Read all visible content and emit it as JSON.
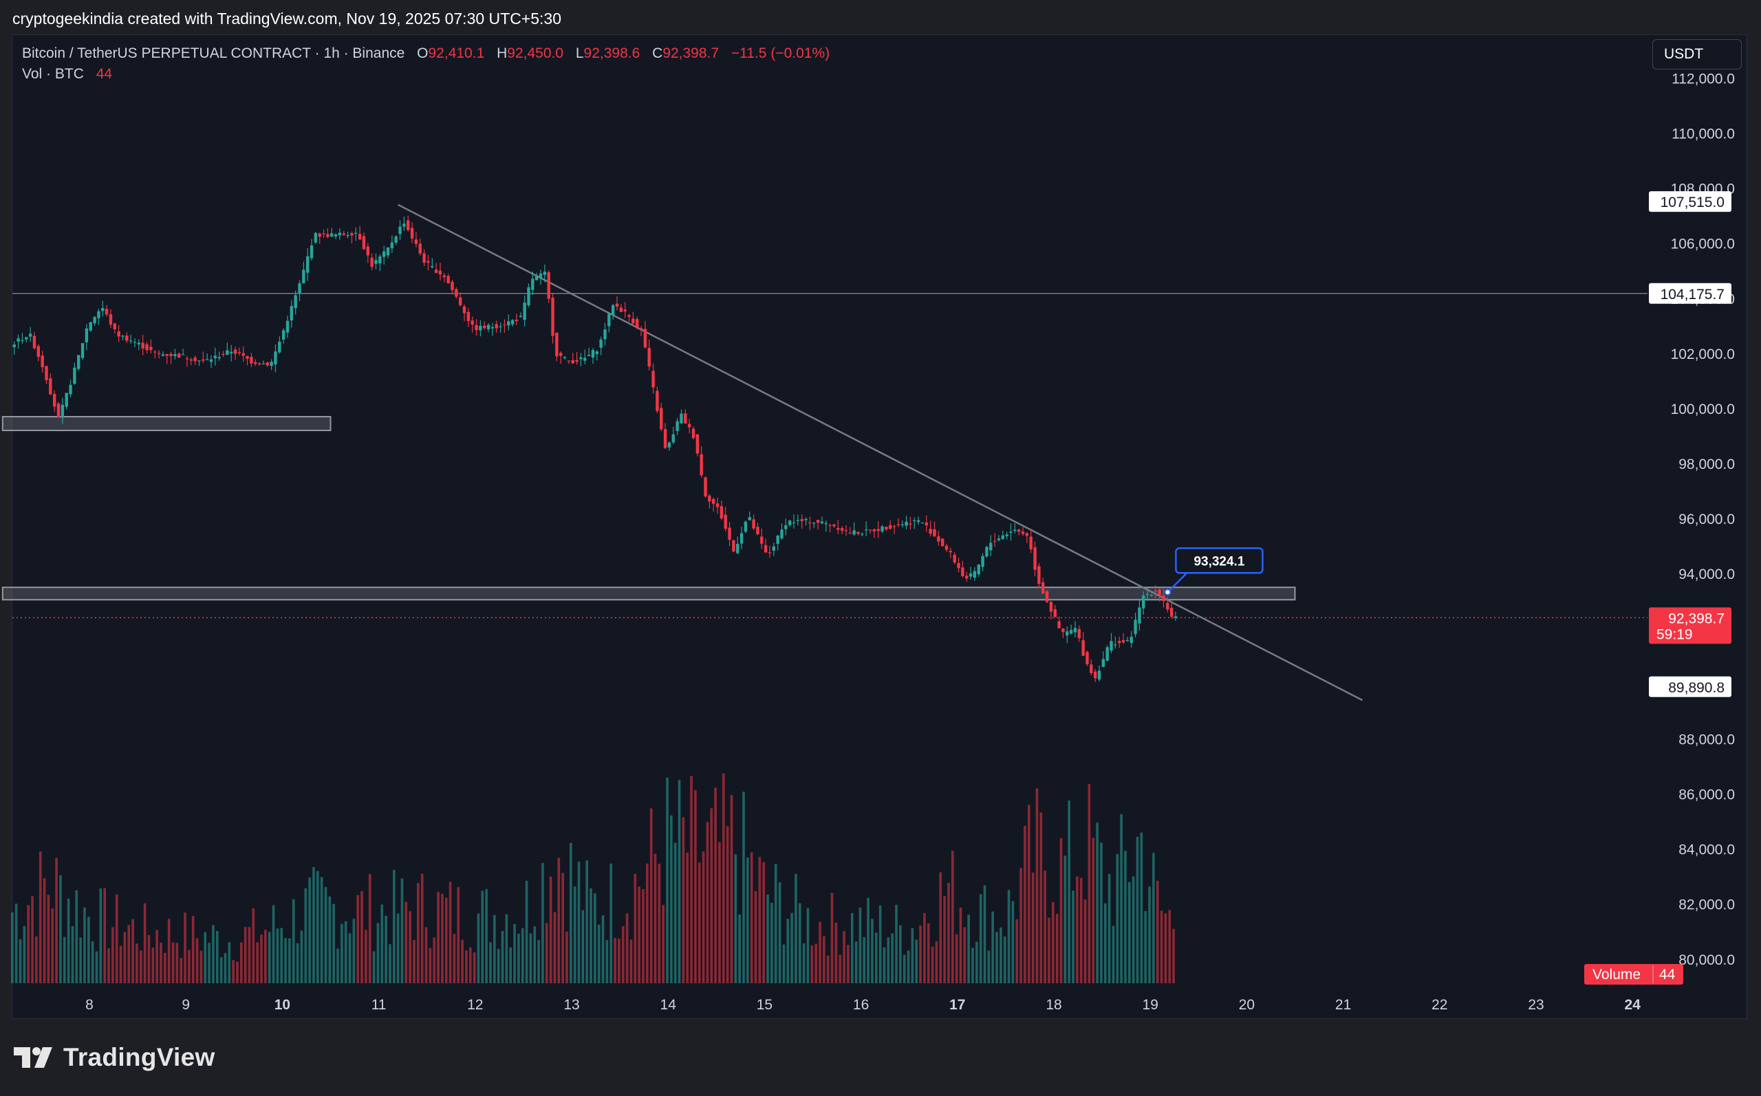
{
  "header": {
    "caption": "cryptogeekindia created with TradingView.com, Nov 19, 2025 07:30 UTC+5:30"
  },
  "legend": {
    "title": "Bitcoin / TetherUS PERPETUAL CONTRACT · 1h · Binance",
    "o_key": "O",
    "o_val": "92,410.1",
    "h_key": "H",
    "h_val": "92,450.0",
    "l_key": "L",
    "l_val": "92,398.6",
    "c_key": "C",
    "c_val": "92,398.7",
    "change": "−11.5 (−0.01%)",
    "vol_label": "Vol · BTC",
    "vol_val": "44"
  },
  "currency_selector": {
    "label": "USDT"
  },
  "brand": {
    "name": "TradingView",
    "icon": "tradingview-logo-icon"
  },
  "colors": {
    "up": "#26a69a",
    "down": "#f23645",
    "background": "#131722",
    "grid_text": "#d1d4dc",
    "callout": "#2962ff"
  },
  "chart_data": {
    "type": "candlestick",
    "timeframe": "1h",
    "symbol": "BTCUSDT.P",
    "exchange": "Binance",
    "x_tick_labels": [
      {
        "day": 8,
        "label": "8"
      },
      {
        "day": 9,
        "label": "9"
      },
      {
        "day": 10,
        "label": "10",
        "bold": true
      },
      {
        "day": 11,
        "label": "11"
      },
      {
        "day": 12,
        "label": "12"
      },
      {
        "day": 13,
        "label": "13"
      },
      {
        "day": 14,
        "label": "14"
      },
      {
        "day": 15,
        "label": "15"
      },
      {
        "day": 16,
        "label": "16"
      },
      {
        "day": 17,
        "label": "17",
        "bold": true
      },
      {
        "day": 18,
        "label": "18"
      },
      {
        "day": 19,
        "label": "19"
      },
      {
        "day": 20,
        "label": "20"
      },
      {
        "day": 21,
        "label": "21"
      },
      {
        "day": 22,
        "label": "22"
      },
      {
        "day": 23,
        "label": "23"
      },
      {
        "day": 24,
        "label": "24",
        "bold": true
      }
    ],
    "y_tick_labels": [
      "112,000.0",
      "110,000.0",
      "108,000.0",
      "106,000.0",
      "104,000.0",
      "102,000.0",
      "100,000.0",
      "98,000.0",
      "96,000.0",
      "94,000.0",
      "88,000.0",
      "86,000.0",
      "84,000.0",
      "82,000.0",
      "80,000.0"
    ],
    "y_ticks": [
      112000,
      110000,
      108000,
      106000,
      104000,
      102000,
      100000,
      98000,
      96000,
      94000,
      88000,
      86000,
      84000,
      82000,
      80000
    ],
    "ylim": [
      79900,
      112100
    ],
    "price_path": [
      [
        7.2,
        102300
      ],
      [
        7.4,
        102700
      ],
      [
        7.55,
        101400
      ],
      [
        7.7,
        99600
      ],
      [
        7.85,
        101200
      ],
      [
        8.0,
        103000
      ],
      [
        8.15,
        103700
      ],
      [
        8.3,
        102700
      ],
      [
        8.5,
        102400
      ],
      [
        8.7,
        102000
      ],
      [
        9.0,
        101900
      ],
      [
        9.2,
        101700
      ],
      [
        9.5,
        102100
      ],
      [
        9.7,
        101700
      ],
      [
        9.9,
        101600
      ],
      [
        10.0,
        102500
      ],
      [
        10.2,
        104500
      ],
      [
        10.35,
        106300
      ],
      [
        10.6,
        106300
      ],
      [
        10.8,
        106400
      ],
      [
        10.95,
        105200
      ],
      [
        11.1,
        105700
      ],
      [
        11.28,
        106800
      ],
      [
        11.5,
        105300
      ],
      [
        11.7,
        104800
      ],
      [
        11.85,
        103900
      ],
      [
        12.0,
        102900
      ],
      [
        12.25,
        103000
      ],
      [
        12.5,
        103300
      ],
      [
        12.6,
        104700
      ],
      [
        12.75,
        104900
      ],
      [
        12.85,
        102000
      ],
      [
        13.0,
        101700
      ],
      [
        13.15,
        101800
      ],
      [
        13.3,
        102200
      ],
      [
        13.45,
        103800
      ],
      [
        13.6,
        103400
      ],
      [
        13.75,
        102800
      ],
      [
        13.85,
        101000
      ],
      [
        13.95,
        99200
      ],
      [
        14.0,
        98400
      ],
      [
        14.15,
        99800
      ],
      [
        14.3,
        98900
      ],
      [
        14.4,
        96900
      ],
      [
        14.55,
        96300
      ],
      [
        14.7,
        94800
      ],
      [
        14.85,
        96100
      ],
      [
        15.05,
        94600
      ],
      [
        15.25,
        95900
      ],
      [
        15.5,
        95900
      ],
      [
        15.7,
        95800
      ],
      [
        15.9,
        95500
      ],
      [
        16.05,
        95500
      ],
      [
        16.3,
        95700
      ],
      [
        16.55,
        95900
      ],
      [
        16.65,
        95900
      ],
      [
        16.75,
        95500
      ],
      [
        16.95,
        94700
      ],
      [
        17.1,
        93800
      ],
      [
        17.2,
        94000
      ],
      [
        17.35,
        95100
      ],
      [
        17.6,
        95600
      ],
      [
        17.75,
        95400
      ],
      [
        17.85,
        93800
      ],
      [
        18.0,
        92600
      ],
      [
        18.1,
        91800
      ],
      [
        18.25,
        92000
      ],
      [
        18.35,
        90800
      ],
      [
        18.45,
        90200
      ],
      [
        18.6,
        91500
      ],
      [
        18.8,
        91500
      ],
      [
        18.95,
        93200
      ],
      [
        19.1,
        93400
      ],
      [
        19.25,
        92400
      ]
    ],
    "volume_profile": [
      [
        7.2,
        0.3
      ],
      [
        7.6,
        0.42
      ],
      [
        8.0,
        0.28
      ],
      [
        8.5,
        0.22
      ],
      [
        9.0,
        0.2
      ],
      [
        9.5,
        0.18
      ],
      [
        10.0,
        0.25
      ],
      [
        10.3,
        0.32
      ],
      [
        11.0,
        0.3
      ],
      [
        11.5,
        0.32
      ],
      [
        12.0,
        0.28
      ],
      [
        12.5,
        0.3
      ],
      [
        12.85,
        0.55
      ],
      [
        13.2,
        0.32
      ],
      [
        13.6,
        0.38
      ],
      [
        14.0,
        0.6
      ],
      [
        14.4,
        0.55
      ],
      [
        14.7,
        0.58
      ],
      [
        15.0,
        0.38
      ],
      [
        15.5,
        0.25
      ],
      [
        16.0,
        0.25
      ],
      [
        16.5,
        0.22
      ],
      [
        16.9,
        0.4
      ],
      [
        17.2,
        0.3
      ],
      [
        17.5,
        0.28
      ],
      [
        17.8,
        0.55
      ],
      [
        18.1,
        0.48
      ],
      [
        18.35,
        0.58
      ],
      [
        18.6,
        0.4
      ],
      [
        18.9,
        0.6
      ],
      [
        19.1,
        0.3
      ],
      [
        19.25,
        0.26
      ]
    ],
    "volume_axis_max": 0.9,
    "trendline": {
      "from": [
        11.2,
        107400
      ],
      "to": [
        21.2,
        89400
      ]
    },
    "horizontal_line": {
      "price": 104175.7,
      "label": "104,175.7"
    },
    "support_zones": [
      {
        "from_day": 7.1,
        "to_day": 10.5,
        "price_high": 99700,
        "price_low": 99200
      },
      {
        "from_day": 7.1,
        "to_day": 20.5,
        "price_high": 93500,
        "price_low": 93050
      }
    ],
    "price_markers": [
      {
        "price": 107515.0,
        "label": "107,515.0"
      },
      {
        "price": 89890.8,
        "label": "89,890.8"
      }
    ],
    "last_price": {
      "price": 92398.7,
      "label": "92,398.7",
      "countdown": "59:19"
    },
    "callout": {
      "label": "93,324.1",
      "anchor_day": 19.18,
      "anchor_price": 93324.1
    },
    "volume_badge": {
      "label": "Volume",
      "value": "44"
    }
  }
}
